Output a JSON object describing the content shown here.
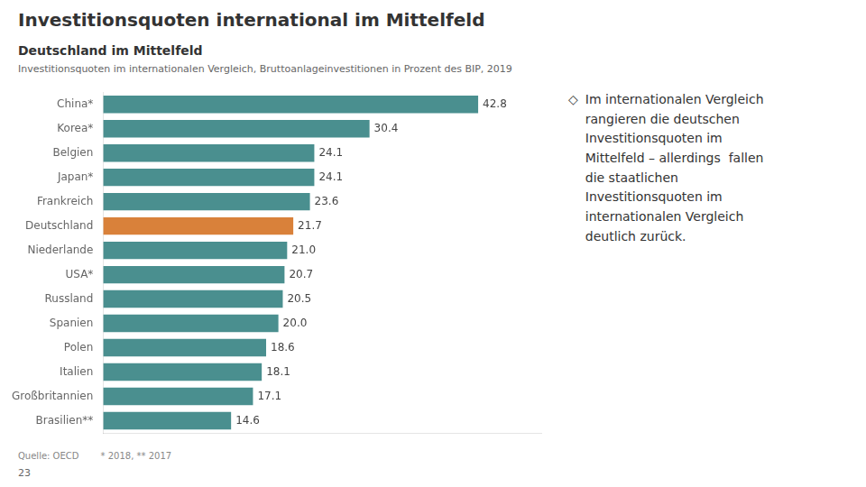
{
  "chart_data": {
    "type": "bar",
    "orientation": "horizontal",
    "title": "Investitionsquoten international im Mittelfeld",
    "subtitle": "Deutschland im Mittelfeld",
    "description": "Investitionsquoten im internationalen Vergleich, Bruttoanlageinvestitionen in Prozent des BIP, 2019",
    "annotations": [
      "◇",
      "Im internationalen Vergleich\nrangieren die deutschen\nInvestitionsquoten im\nMittelfeld – allerdings  fallen\ndie staatlichen\nInvestitionsquoten im\ninternationalen Vergleich\ndeutlich zurück."
    ],
    "notes": [
      "Quelle: OECD",
      "* 2018, ** 2017"
    ],
    "page_number": "23",
    "categories": [
      "China*",
      "Korea*",
      "Belgien",
      "Japan*",
      "Frankreich",
      "Deutschland",
      "Niederlande",
      "USA*",
      "Russland",
      "Spanien",
      "Polen",
      "Italien",
      "Großbritannien",
      "Brasilien**"
    ],
    "values": [
      42.8,
      30.4,
      24.1,
      24.1,
      23.6,
      21.7,
      21.0,
      20.7,
      20.5,
      20.0,
      18.6,
      18.1,
      17.1,
      14.6
    ],
    "value_labels": [
      "42.8",
      "30.4",
      "24.1",
      "24.1",
      "23.6",
      "21.7",
      "21.0",
      "20.7",
      "20.5",
      "20.0",
      "18.6",
      "18.1",
      "17.1",
      "14.6"
    ],
    "colors": [
      "#4a8f8f",
      "#4a8f8f",
      "#4a8f8f",
      "#4a8f8f",
      "#4a8f8f",
      "#d9813a",
      "#4a8f8f",
      "#4a8f8f",
      "#4a8f8f",
      "#4a8f8f",
      "#4a8f8f",
      "#4a8f8f",
      "#4a8f8f",
      "#4a8f8f"
    ],
    "xlim": [
      0,
      50
    ],
    "grid": false,
    "tick_labels": "y",
    "data_labels": true
  }
}
